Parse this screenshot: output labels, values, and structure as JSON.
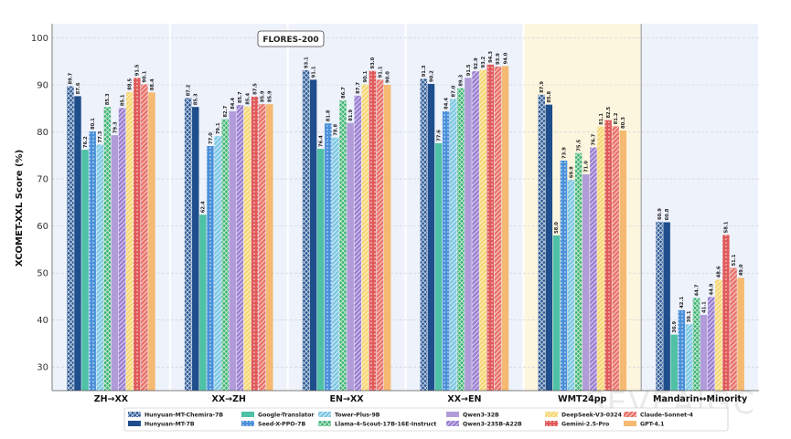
{
  "chart_data": {
    "type": "bar",
    "title": "FLORES-200",
    "ylabel": "XCOMET-XXL Score (%)",
    "xlabel": "",
    "ylim": [
      25,
      103
    ],
    "yticks": [
      30,
      40,
      50,
      60,
      70,
      80,
      90,
      100
    ],
    "grid": true,
    "legend_position": "bottom",
    "highlight_group": "WMT24pp",
    "categories": [
      "ZH→XX",
      "XX→ZH",
      "EN→XX",
      "XX→EN",
      "WMT24pp",
      "Mandarin↔Minority"
    ],
    "series": [
      {
        "name": "Hunyuan-MT-Chemira-7B",
        "color": "#2d5a96",
        "pattern": "cross",
        "values": [
          89.7,
          87.2,
          93.1,
          91.3,
          87.9,
          60.9
        ]
      },
      {
        "name": "Hunyuan-MT-7B",
        "color": "#1f4e8c",
        "pattern": "solid",
        "values": [
          87.6,
          85.3,
          91.1,
          90.2,
          85.8,
          60.8
        ]
      },
      {
        "name": "Google-Translator",
        "color": "#4fc1a6",
        "pattern": "solid",
        "values": [
          76.2,
          62.4,
          76.4,
          77.6,
          58.0,
          36.9
        ]
      },
      {
        "name": "Seed-X-PPO-7B",
        "color": "#4a90d9",
        "pattern": "dots",
        "values": [
          80.1,
          77.0,
          81.8,
          84.4,
          73.9,
          42.1
        ]
      },
      {
        "name": "Tower-Plus-9B",
        "color": "#7ec8e3",
        "pattern": "diag",
        "values": [
          77.3,
          79.1,
          78.8,
          87.0,
          69.8,
          39.1
        ]
      },
      {
        "name": "Llama-4-Scout-17B-16E-Instruct",
        "color": "#3cb371",
        "pattern": "cross",
        "values": [
          85.3,
          82.7,
          86.7,
          89.3,
          75.5,
          44.7
        ]
      },
      {
        "name": "Qwen3-32B",
        "color": "#b19cd9",
        "pattern": "solid",
        "values": [
          79.3,
          84.4,
          81.9,
          91.5,
          71.0,
          41.1
        ]
      },
      {
        "name": "Qwen3-235B-A22B",
        "color": "#9b7fd1",
        "pattern": "diag",
        "values": [
          85.1,
          85.7,
          87.7,
          92.9,
          76.7,
          44.9
        ]
      },
      {
        "name": "DeepSeek-V3-0324",
        "color": "#f7d774",
        "pattern": "diag",
        "values": [
          88.5,
          85.4,
          90.1,
          93.2,
          81.1,
          48.6
        ]
      },
      {
        "name": "Gemini-2.5-Pro",
        "color": "#e05a5a",
        "pattern": "dots",
        "values": [
          91.5,
          87.5,
          93.0,
          94.3,
          82.5,
          58.1
        ]
      },
      {
        "name": "Claude-Sonnet-4",
        "color": "#e8736b",
        "pattern": "diag",
        "values": [
          90.1,
          85.9,
          91.1,
          93.9,
          81.2,
          51.1
        ]
      },
      {
        "name": "GPT-4.1",
        "color": "#f5b971",
        "pattern": "solid",
        "values": [
          88.4,
          85.9,
          90.0,
          94.0,
          80.3,
          49.0
        ]
      }
    ],
    "watermark": "SEVEAIGC"
  },
  "colors": {
    "group_background": "#eef2fb",
    "highlight_background": "#fdf6df",
    "separator": "#888888"
  }
}
